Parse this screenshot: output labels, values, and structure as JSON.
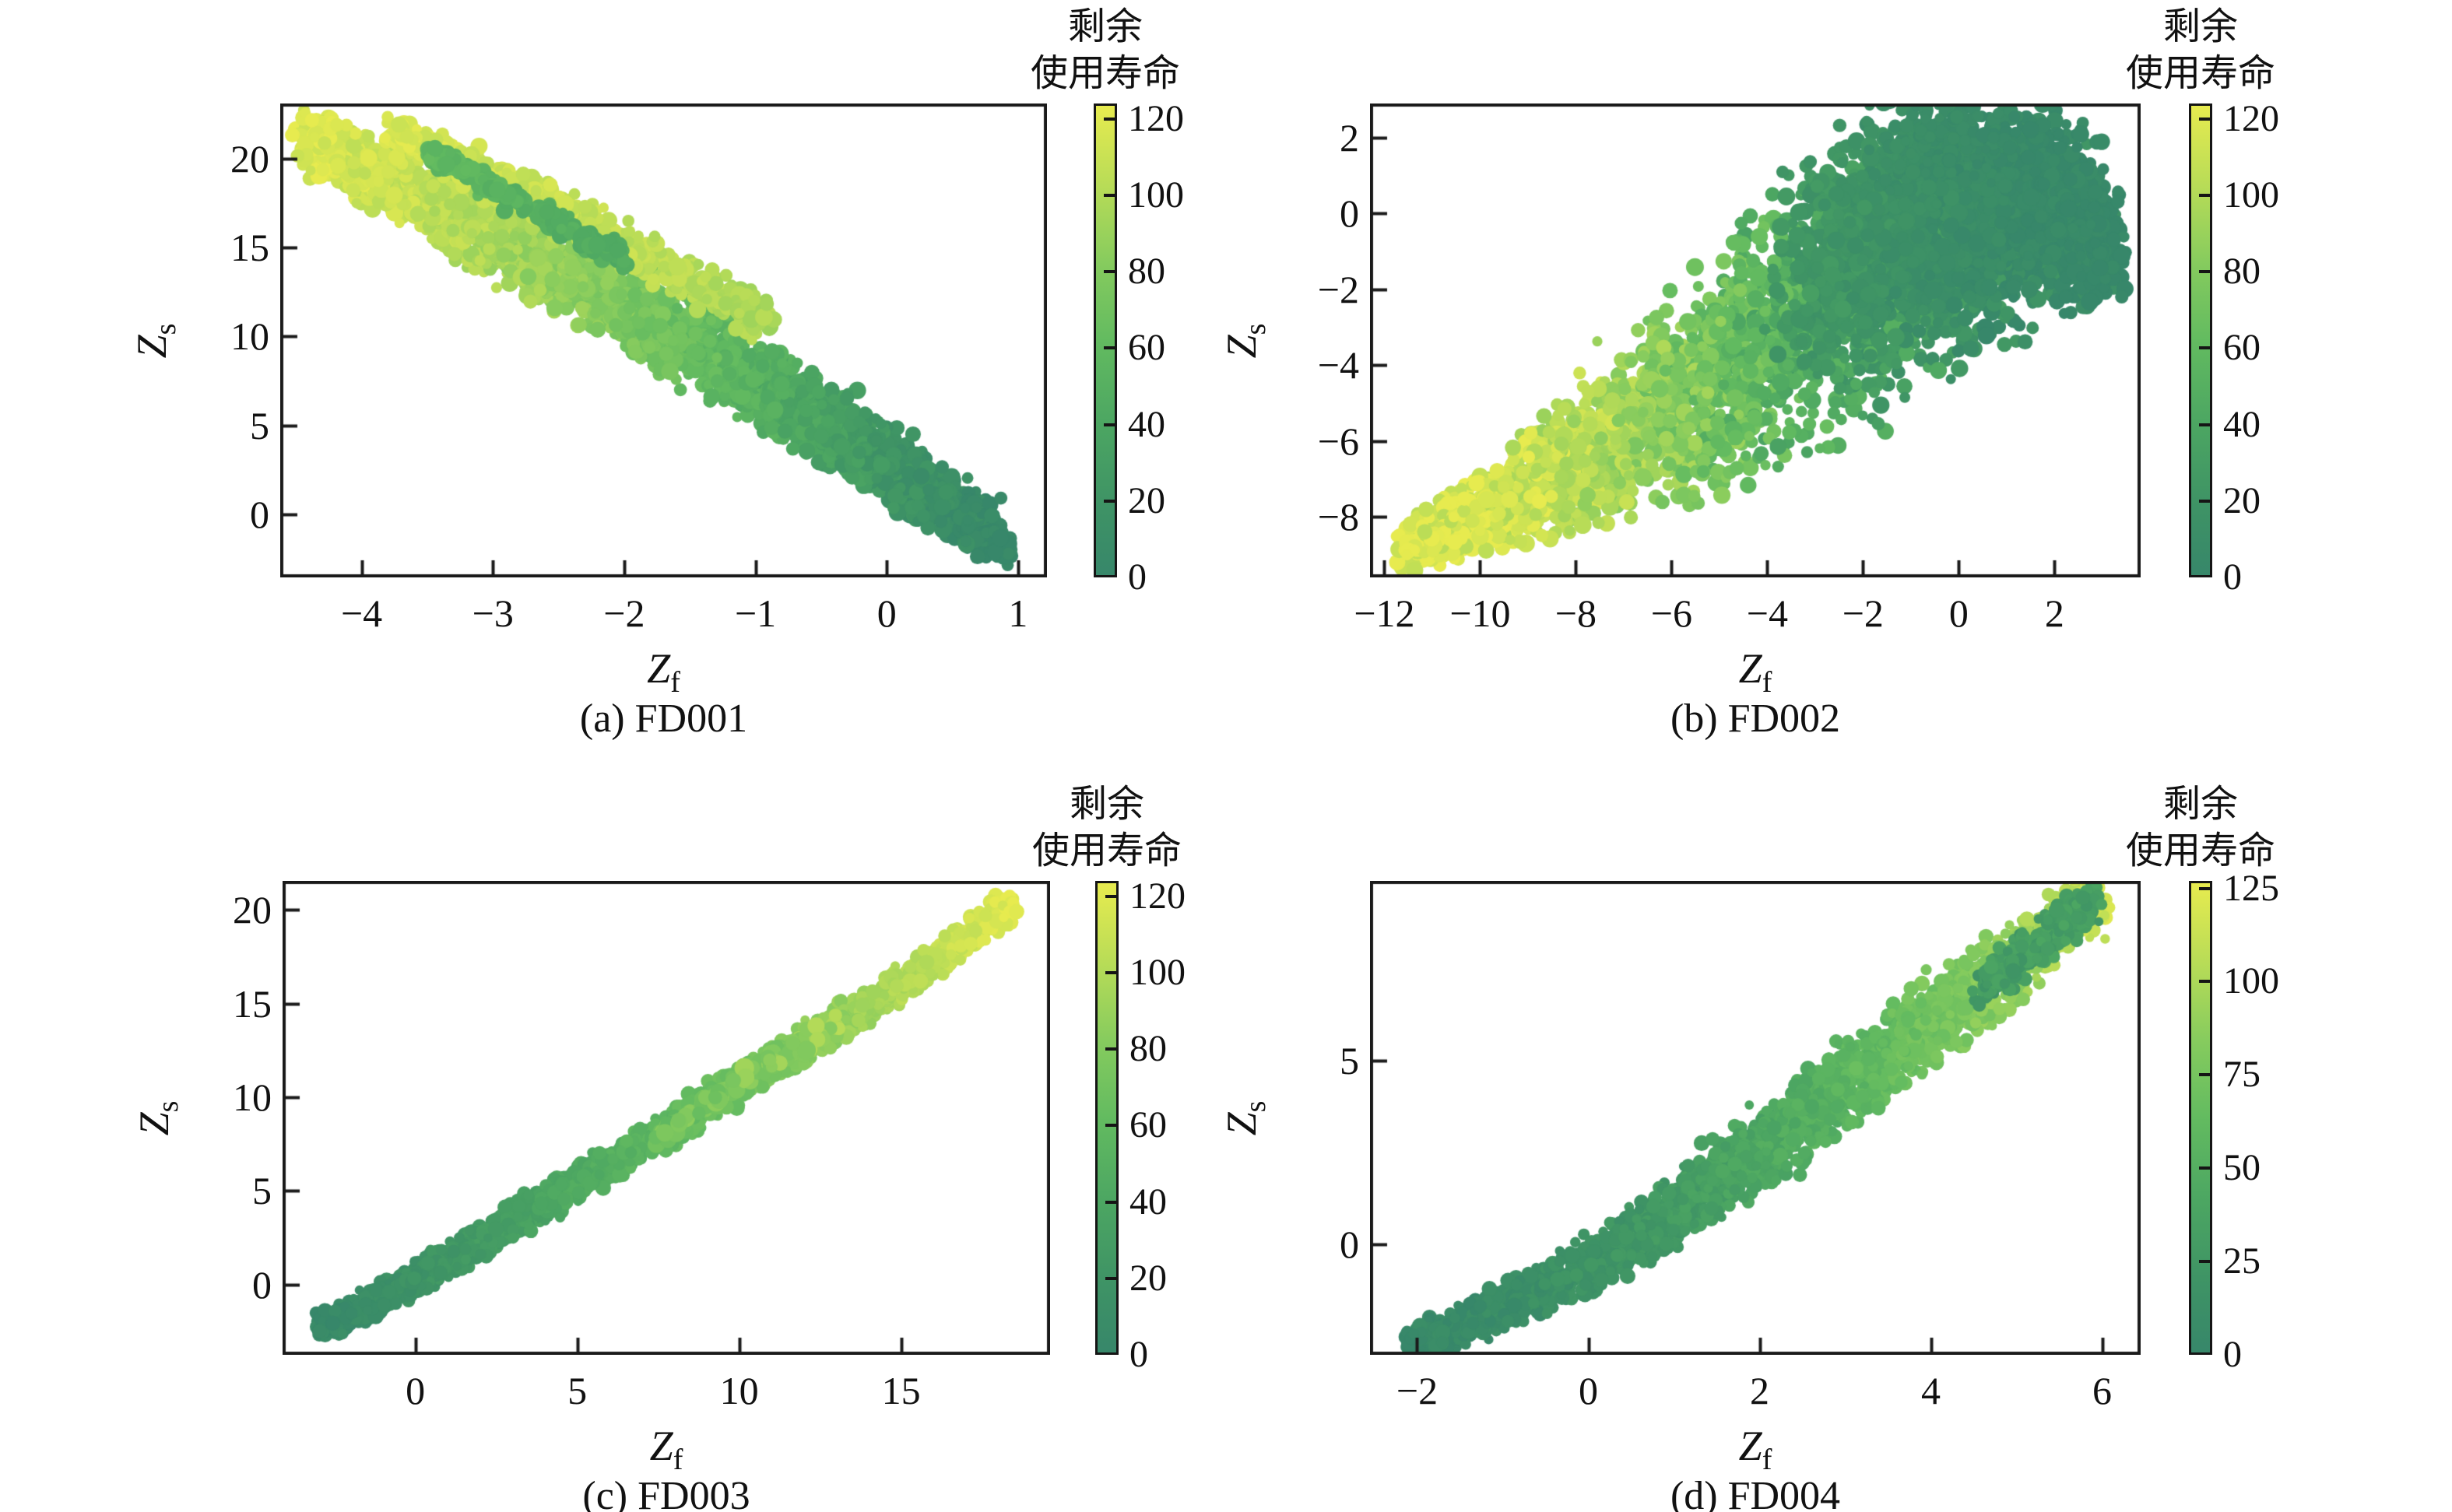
{
  "figure": {
    "background": "#ffffff",
    "axis_labels": {
      "x_main": "Z",
      "x_sub": "f",
      "y_main": "Z",
      "y_sub": "s"
    },
    "colorbar_title_line1": "剩余",
    "colorbar_title_line2": "使用寿命",
    "colormap": {
      "domain": [
        0,
        125
      ],
      "stops": [
        [
          0.0,
          "#37876a"
        ],
        [
          0.16,
          "#3f9465"
        ],
        [
          0.33,
          "#4da762"
        ],
        [
          0.5,
          "#63bb60"
        ],
        [
          0.66,
          "#85cb5e"
        ],
        [
          0.83,
          "#b8dc57"
        ],
        [
          1.0,
          "#e7eb4f"
        ]
      ]
    },
    "spine_color": "#1a1a1a"
  },
  "chart_data": [
    {
      "id": "a",
      "type": "scatter",
      "caption": "(a) FD001",
      "xlabel": "Zf",
      "ylabel": "Zs",
      "xlim": [
        -4.62,
        1.22
      ],
      "ylim": [
        -3.55,
        23.1
      ],
      "xticks": [
        -4,
        -3,
        -2,
        -1,
        0,
        1
      ],
      "yticks": [
        0,
        5,
        10,
        15,
        20
      ],
      "colorbar": {
        "ticks": [
          0,
          20,
          40,
          60,
          80,
          100,
          120
        ],
        "vmin": 0,
        "vmax": 124
      },
      "bands": [
        {
          "seed": 101,
          "n": 2700,
          "radius": 9,
          "rul_jitter": 9,
          "points": [
            [
              -4.45,
              21.2,
              120,
              0.75
            ],
            [
              -3.7,
              18.4,
              110,
              0.95
            ],
            [
              -2.9,
              15.3,
              97,
              1.1
            ],
            [
              -2.1,
              12.1,
              80,
              1.15
            ],
            [
              -1.3,
              8.8,
              60,
              1.15
            ],
            [
              -0.5,
              5.3,
              36,
              1.05
            ],
            [
              0.25,
              1.7,
              15,
              0.95
            ],
            [
              0.75,
              -0.8,
              4,
              0.8
            ],
            [
              0.92,
              -2.1,
              1,
              0.45
            ]
          ]
        },
        {
          "seed": 102,
          "n": 650,
          "radius": 9,
          "rul_jitter": 7,
          "points": [
            [
              -3.8,
              21.7,
              119,
              0.5
            ],
            [
              -3.1,
              19.2,
              114,
              0.55
            ],
            [
              -2.35,
              16.5,
              110,
              0.6
            ],
            [
              -1.6,
              13.6,
              104,
              0.6
            ],
            [
              -0.9,
              10.8,
              98,
              0.55
            ]
          ]
        },
        {
          "seed": 103,
          "n": 240,
          "radius": 9,
          "rul_jitter": 6,
          "points": [
            [
              -3.5,
              20.4,
              60,
              0.3
            ],
            [
              -3.0,
              18.4,
              54,
              0.35
            ],
            [
              -2.5,
              16.4,
              49,
              0.35
            ],
            [
              -2.0,
              14.4,
              44,
              0.35
            ]
          ]
        }
      ]
    },
    {
      "id": "b",
      "type": "scatter",
      "caption": "(b) FD002",
      "xlabel": "Zf",
      "ylabel": "Zs",
      "xlim": [
        -12.3,
        3.8
      ],
      "ylim": [
        -9.6,
        2.9
      ],
      "xticks": [
        -12,
        -10,
        -8,
        -6,
        -4,
        -2,
        0,
        2
      ],
      "yticks": [
        -8,
        -6,
        -4,
        -2,
        0,
        2
      ],
      "colorbar": {
        "ticks": [
          0,
          20,
          40,
          60,
          80,
          100,
          120
        ],
        "vmin": 0,
        "vmax": 124
      },
      "bands": [
        {
          "seed": 201,
          "n": 3400,
          "radius": 9,
          "rul_jitter": 16,
          "points": [
            [
              -11.6,
              -8.85,
              122,
              0.28
            ],
            [
              -10.6,
              -8.3,
              119,
              0.38
            ],
            [
              -9.6,
              -7.7,
              115,
              0.5
            ],
            [
              -8.6,
              -7.05,
              110,
              0.65
            ],
            [
              -7.6,
              -6.35,
              101,
              0.85
            ],
            [
              -6.6,
              -5.6,
              91,
              1.05
            ],
            [
              -5.6,
              -4.85,
              79,
              1.25
            ],
            [
              -4.6,
              -4.0,
              65,
              1.4
            ],
            [
              -3.6,
              -3.1,
              52,
              1.5
            ],
            [
              -2.6,
              -2.3,
              41,
              1.5
            ],
            [
              -1.6,
              -1.6,
              30,
              1.45
            ],
            [
              -0.6,
              -1.05,
              22,
              1.35
            ],
            [
              0.4,
              -0.65,
              15,
              1.25
            ],
            [
              1.4,
              -0.45,
              9,
              1.1
            ],
            [
              2.3,
              -0.45,
              4,
              0.95
            ],
            [
              3.0,
              -0.75,
              1,
              0.7
            ]
          ]
        },
        {
          "seed": 202,
          "n": 1900,
          "radius": 9,
          "rul_jitter": 6,
          "points": [
            [
              -3.1,
              -1.7,
              26,
              1.2
            ],
            [
              -2.1,
              -0.9,
              19,
              1.3
            ],
            [
              -1.1,
              -0.15,
              13,
              1.35
            ],
            [
              -0.1,
              0.45,
              9,
              1.3
            ],
            [
              0.9,
              0.7,
              6,
              1.2
            ],
            [
              1.9,
              0.35,
              3,
              1.05
            ],
            [
              2.6,
              -0.25,
              2,
              0.85
            ],
            [
              3.05,
              -1.15,
              1,
              0.55
            ]
          ]
        },
        {
          "seed": 203,
          "n": 200,
          "radius": 8,
          "rul_jitter": 5,
          "points": [
            [
              -1.3,
              1.4,
              12,
              0.55
            ],
            [
              -0.4,
              1.85,
              8,
              0.5
            ],
            [
              0.5,
              1.9,
              6,
              0.45
            ],
            [
              1.3,
              1.5,
              4,
              0.4
            ]
          ]
        }
      ]
    },
    {
      "id": "c",
      "type": "scatter",
      "caption": "(c) FD003",
      "xlabel": "Zf",
      "ylabel": "Zs",
      "xlim": [
        -4.1,
        19.6
      ],
      "ylim": [
        -3.75,
        21.55
      ],
      "xticks": [
        0,
        5,
        10,
        15
      ],
      "yticks": [
        0,
        5,
        10,
        15,
        20
      ],
      "colorbar": {
        "ticks": [
          0,
          20,
          40,
          60,
          80,
          100,
          120
        ],
        "vmin": 0,
        "vmax": 124
      },
      "bands": [
        {
          "seed": 301,
          "n": 2700,
          "radius": 8,
          "rul_jitter": 6,
          "points": [
            [
              -3.05,
              -2.5,
              2,
              0.38
            ],
            [
              -2.0,
              -1.6,
              7,
              0.4
            ],
            [
              -1.0,
              -0.7,
              12,
              0.4
            ],
            [
              0.0,
              0.3,
              17,
              0.42
            ],
            [
              1.5,
              1.8,
              25,
              0.45
            ],
            [
              3.0,
              3.3,
              33,
              0.45
            ],
            [
              4.5,
              4.9,
              41,
              0.45
            ],
            [
              6.0,
              6.4,
              49,
              0.45
            ],
            [
              7.5,
              8.0,
              57,
              0.45
            ],
            [
              9.0,
              9.6,
              65,
              0.45
            ],
            [
              10.5,
              11.2,
              73,
              0.45
            ],
            [
              12.0,
              12.8,
              82,
              0.45
            ],
            [
              13.5,
              14.4,
              91,
              0.45
            ],
            [
              15.0,
              16.1,
              100,
              0.45
            ],
            [
              16.5,
              17.8,
              110,
              0.42
            ],
            [
              18.4,
              20.3,
              122,
              0.4
            ]
          ]
        },
        {
          "seed": 302,
          "n": 100,
          "radius": 10,
          "rul_jitter": 12,
          "points": [
            [
              7.5,
              8.1,
              70,
              0.3
            ],
            [
              9.5,
              10.2,
              80,
              0.3
            ],
            [
              11.5,
              12.3,
              88,
              0.3
            ],
            [
              13.0,
              13.9,
              95,
              0.3
            ]
          ]
        }
      ]
    },
    {
      "id": "d",
      "type": "scatter",
      "caption": "(d) FD004",
      "xlabel": "Zf",
      "ylabel": "Zs",
      "xlim": [
        -2.55,
        6.45
      ],
      "ylim": [
        -3.0,
        9.9
      ],
      "xticks": [
        -2,
        0,
        2,
        4,
        6
      ],
      "yticks": [
        0,
        5
      ],
      "colorbar": {
        "ticks": [
          0,
          25,
          50,
          75,
          100,
          125
        ],
        "vmin": 0,
        "vmax": 127
      },
      "bands": [
        {
          "seed": 401,
          "n": 2700,
          "radius": 8,
          "rul_jitter": 8,
          "points": [
            [
              -2.1,
              -2.75,
              2,
              0.2
            ],
            [
              -1.6,
              -2.3,
              5,
              0.24
            ],
            [
              -1.0,
              -1.75,
              9,
              0.28
            ],
            [
              -0.4,
              -1.05,
              14,
              0.32
            ],
            [
              0.2,
              -0.3,
              19,
              0.35
            ],
            [
              0.8,
              0.55,
              25,
              0.4
            ],
            [
              1.4,
              1.55,
              32,
              0.45
            ],
            [
              2.0,
              2.6,
              40,
              0.5
            ],
            [
              2.7,
              3.8,
              50,
              0.52
            ],
            [
              3.4,
              5.0,
              61,
              0.52
            ],
            [
              4.1,
              6.2,
              73,
              0.52
            ],
            [
              4.8,
              7.4,
              86,
              0.5
            ],
            [
              5.4,
              8.4,
              100,
              0.45
            ],
            [
              5.95,
              9.35,
              115,
              0.38
            ]
          ]
        },
        {
          "seed": 402,
          "n": 280,
          "radius": 8,
          "rul_jitter": 10,
          "points": [
            [
              4.6,
              7.0,
              28,
              0.3
            ],
            [
              5.1,
              7.9,
              30,
              0.3
            ],
            [
              5.6,
              8.8,
              32,
              0.28
            ],
            [
              5.95,
              9.4,
              30,
              0.24
            ]
          ]
        }
      ]
    }
  ]
}
